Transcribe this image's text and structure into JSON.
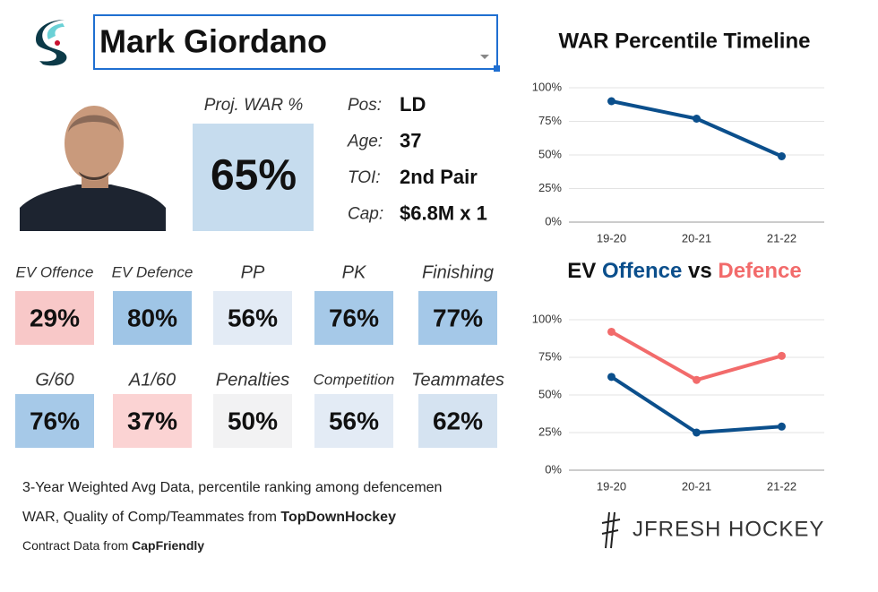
{
  "header": {
    "player_name": "Mark Giordano"
  },
  "projection": {
    "label": "Proj. WAR %",
    "value": 65,
    "value_label": "65%",
    "color": "#c6dcee"
  },
  "bio": [
    {
      "label": "Pos:",
      "value": "LD"
    },
    {
      "label": "Age:",
      "value": "37"
    },
    {
      "label": "TOI:",
      "value": "2nd Pair"
    },
    {
      "label": "Cap:",
      "value": "$6.8M x 1"
    }
  ],
  "metrics": [
    {
      "label": "EV Offence",
      "value": 29,
      "value_label": "29%",
      "color": "#f8c8c8"
    },
    {
      "label": "EV Defence",
      "value": 80,
      "value_label": "80%",
      "color": "#9fc5e6"
    },
    {
      "label": "PP",
      "value": 56,
      "value_label": "56%",
      "color": "#e3ebf5"
    },
    {
      "label": "PK",
      "value": 76,
      "value_label": "76%",
      "color": "#a6c9e8"
    },
    {
      "label": "Finishing",
      "value": 77,
      "value_label": "77%",
      "color": "#a4c8e8"
    },
    {
      "label": "G/60",
      "value": 76,
      "value_label": "76%",
      "color": "#a6c9e8"
    },
    {
      "label": "A1/60",
      "value": 37,
      "value_label": "37%",
      "color": "#fbd3d3"
    },
    {
      "label": "Penalties",
      "value": 50,
      "value_label": "50%",
      "color": "#f2f2f3"
    },
    {
      "label": "Competition",
      "value": 56,
      "value_label": "56%",
      "color": "#e3ebf5"
    },
    {
      "label": "Teammates",
      "value": 62,
      "value_label": "62%",
      "color": "#d5e3f1"
    }
  ],
  "notes": {
    "line1": "3-Year Weighted Avg Data, percentile ranking among defencemen",
    "line2": "WAR, Quality of Comp/Teammates from",
    "line2_source": "TopDownHockey",
    "line3": "Contract Data from",
    "line3_source": "CapFriendly"
  },
  "brand": "JFRESH HOCKEY",
  "chart_data": [
    {
      "type": "line",
      "title": "WAR Percentile Timeline",
      "categories": [
        "19-20",
        "20-21",
        "21-22"
      ],
      "series": [
        {
          "name": "WAR",
          "color": "#0b4f8c",
          "values": [
            90,
            77,
            49
          ]
        }
      ],
      "ylim": [
        0,
        100
      ],
      "yticks": [
        {
          "value": 0,
          "label": "0%"
        },
        {
          "value": 25,
          "label": "25%"
        },
        {
          "value": 50,
          "label": "50%"
        },
        {
          "value": 75,
          "label": "75%"
        },
        {
          "value": 100,
          "label": "100%"
        }
      ],
      "grid": true
    },
    {
      "type": "line",
      "title_prefix": "EV",
      "title_joiner": "vs",
      "categories": [
        "19-20",
        "20-21",
        "21-22"
      ],
      "series": [
        {
          "name": "Offence",
          "color": "#0b4f8c",
          "values": [
            62,
            25,
            29
          ]
        },
        {
          "name": "Defence",
          "color": "#f26b6b",
          "values": [
            92,
            60,
            76
          ]
        }
      ],
      "ylim": [
        0,
        100
      ],
      "yticks": [
        {
          "value": 0,
          "label": "0%"
        },
        {
          "value": 25,
          "label": "25%"
        },
        {
          "value": 50,
          "label": "50%"
        },
        {
          "value": 75,
          "label": "75%"
        },
        {
          "value": 100,
          "label": "100%"
        }
      ],
      "grid": true
    }
  ]
}
